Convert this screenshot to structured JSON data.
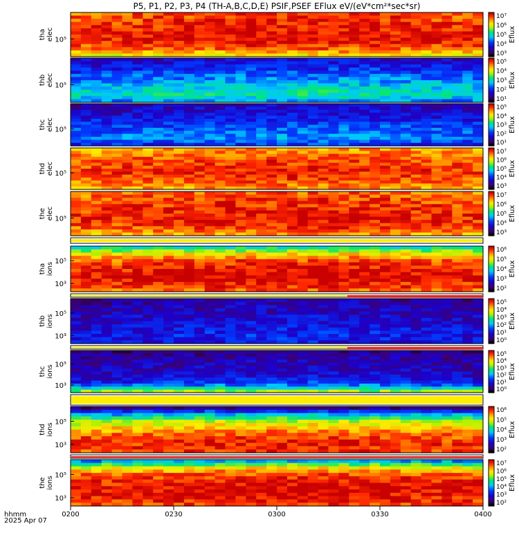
{
  "chart_data": {
    "type": "heatmap",
    "title": "P5, P1, P2, P3, P4 (TH-A,B,C,D,E) PSIF,PSEF EFlux eV/(eV*cm²*sec*sr)",
    "x_ticks": [
      "0200",
      "0230",
      "0300",
      "0330",
      "0400"
    ],
    "x_range": [
      "02:00",
      "04:00"
    ],
    "x_label_1": "hhmm",
    "x_label_2": "2025 Apr 07",
    "colorbar_label": "Eflux",
    "panels": [
      {
        "label_1": "tha",
        "label_2": "elec",
        "y_tick": "10⁵",
        "cbar_ticks": [
          "10⁷",
          "10⁶",
          "10⁵",
          "10⁴",
          "10³"
        ],
        "intensity": [
          0.88,
          0.9,
          0.92,
          0.93,
          0.95,
          0.93,
          0.85,
          0.72
        ]
      },
      {
        "label_1": "thb",
        "label_2": "elec",
        "y_tick": "10⁵",
        "cbar_ticks": [
          "10⁵",
          "10⁴",
          "10³",
          "10²",
          "10¹"
        ],
        "intensity": [
          0.18,
          0.22,
          0.28,
          0.34,
          0.4,
          0.46,
          0.5,
          0.38
        ]
      },
      {
        "label_1": "thc",
        "label_2": "elec",
        "y_tick": "10⁵",
        "cbar_ticks": [
          "10⁵",
          "10⁴",
          "10³",
          "10²",
          "10¹"
        ],
        "intensity": [
          0.14,
          0.18,
          0.22,
          0.26,
          0.3,
          0.34,
          0.36,
          0.26
        ]
      },
      {
        "label_1": "thd",
        "label_2": "elec",
        "y_tick": "10⁵",
        "cbar_ticks": [
          "10⁷",
          "10⁶",
          "10⁵",
          "10⁴",
          "10³"
        ],
        "intensity": [
          0.8,
          0.84,
          0.88,
          0.9,
          0.92,
          0.9,
          0.86,
          0.8
        ]
      },
      {
        "label_1": "the",
        "label_2": "elec",
        "y_tick": "10⁵",
        "cbar_ticks": [
          "10⁷",
          "10⁶",
          "10⁵",
          "10⁴",
          "10³"
        ],
        "intensity": [
          0.85,
          0.88,
          0.9,
          0.92,
          0.93,
          0.92,
          0.88,
          0.8
        ]
      },
      {
        "label_1": "tha",
        "label_2": "ions",
        "y_tick_hi": "10⁵",
        "y_tick_lo": "10³",
        "cbar_ticks": [
          "10⁶",
          "10⁵",
          "10⁴",
          "10³",
          "10²"
        ],
        "intensity": [
          0.5,
          0.72,
          0.86,
          0.92,
          0.95,
          0.96,
          0.92,
          0.86
        ]
      },
      {
        "label_1": "thb",
        "label_2": "ions",
        "y_tick_hi": "10⁵",
        "y_tick_lo": "10³",
        "cbar_ticks": [
          "10⁵",
          "10⁴",
          "10³",
          "10²",
          "10¹",
          "10⁰"
        ],
        "intensity": [
          0.12,
          0.14,
          0.16,
          0.18,
          0.2,
          0.22,
          0.24,
          0.22
        ]
      },
      {
        "label_1": "thc",
        "label_2": "ions",
        "y_tick_hi": "10⁵",
        "y_tick_lo": "10³",
        "cbar_ticks": [
          "10⁵",
          "10⁴",
          "10³",
          "10²",
          "10¹",
          "10⁰"
        ],
        "intensity": [
          0.1,
          0.12,
          0.14,
          0.16,
          0.18,
          0.22,
          0.34,
          0.62
        ]
      },
      {
        "label_1": "thd",
        "label_2": "ions",
        "y_tick_hi": "10⁵",
        "y_tick_lo": "10³",
        "cbar_ticks": [
          "10⁶",
          "10⁵",
          "10⁴",
          "10³",
          "10²"
        ],
        "intensity": [
          0.1,
          0.4,
          0.62,
          0.74,
          0.84,
          0.9,
          0.92,
          0.9
        ]
      },
      {
        "label_1": "the",
        "label_2": "ions",
        "y_tick_hi": "10⁵",
        "y_tick_lo": "10³",
        "cbar_ticks": [
          "10⁷",
          "10⁶",
          "10⁵",
          "10⁴",
          "10³",
          "10²"
        ],
        "intensity": [
          0.4,
          0.7,
          0.86,
          0.92,
          0.95,
          0.96,
          0.94,
          0.9
        ]
      }
    ]
  }
}
